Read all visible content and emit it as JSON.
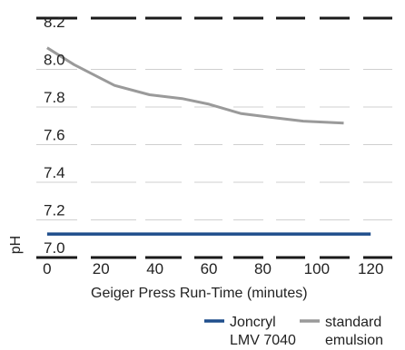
{
  "chart_data": {
    "type": "line",
    "title": "",
    "xlabel": "Geiger Press Run-Time (minutes)",
    "ylabel": "pH",
    "xlim": [
      -4,
      128
    ],
    "ylim": [
      7.0,
      8.2
    ],
    "x_ticks": [
      "0",
      "20",
      "40",
      "60",
      "80",
      "100",
      "120"
    ],
    "y_ticks": [
      "7.0",
      "7.2",
      "7.4",
      "7.6",
      "7.8",
      "8.0",
      "8.2"
    ],
    "grid": true,
    "legend_position": "bottom-right",
    "series": [
      {
        "name": "Joncryl LMV 7040",
        "name_lines": [
          "Joncryl",
          "LMV 7040"
        ],
        "color": "#1f4e8c",
        "x": [
          0,
          120
        ],
        "y": [
          7.12,
          7.12
        ]
      },
      {
        "name": "standard emulsion",
        "name_lines": [
          "standard",
          "emulsion"
        ],
        "color": "#9a9a9a",
        "x": [
          0,
          10,
          25,
          38,
          50,
          60,
          72,
          83,
          95,
          110
        ],
        "y": [
          8.11,
          8.02,
          7.91,
          7.86,
          7.84,
          7.81,
          7.76,
          7.74,
          7.72,
          7.71
        ]
      }
    ]
  }
}
